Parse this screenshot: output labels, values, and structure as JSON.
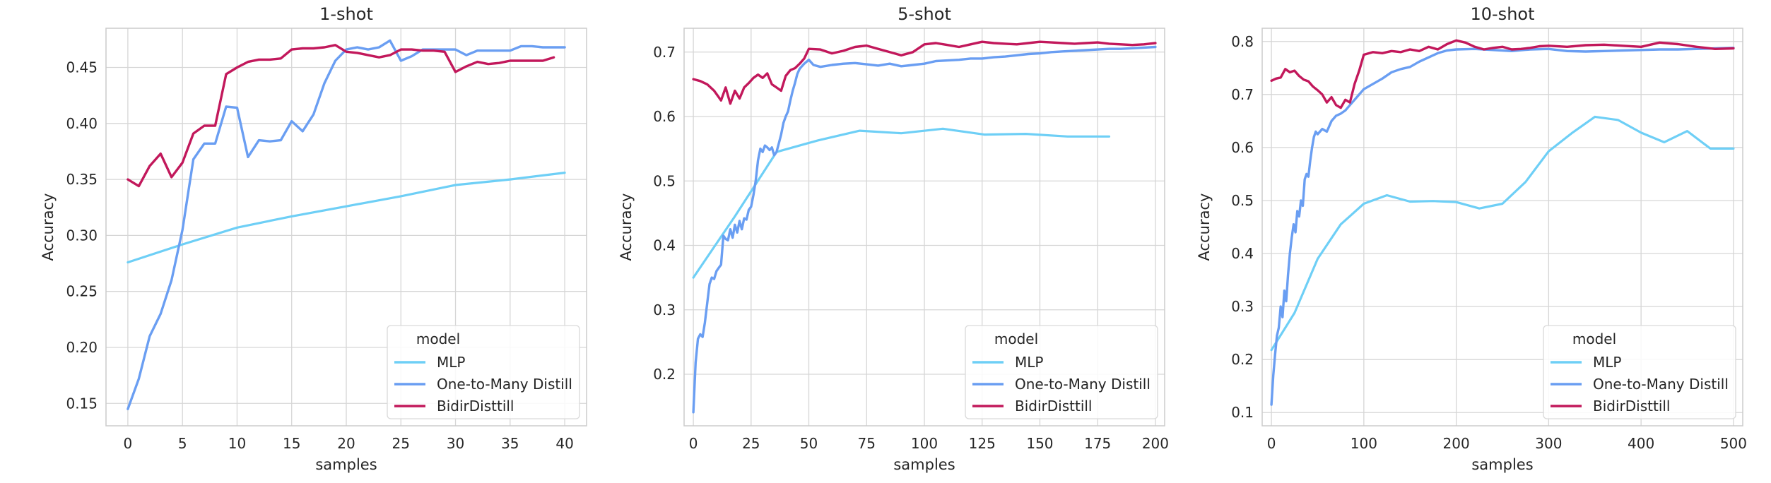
{
  "colors": {
    "MLP": "#6ecff6",
    "One-to-Many Distill": "#6a9ef2",
    "BidirDisttill": "#c2185b",
    "grid": "#d6d6d6",
    "axes_edge": "#cccccc",
    "legend_edge": "#d9d9d9"
  },
  "chart_data": [
    {
      "type": "line",
      "title": "1-shot",
      "xlabel": "samples",
      "ylabel": "Accuracy",
      "xlim": [
        -2,
        42
      ],
      "ylim": [
        0.13,
        0.485
      ],
      "xticks": [
        0,
        5,
        10,
        15,
        20,
        25,
        30,
        35,
        40
      ],
      "yticks": [
        0.15,
        0.2,
        0.25,
        0.3,
        0.35,
        0.4,
        0.45
      ],
      "ytick_labels": [
        "0.15",
        "0.20",
        "0.25",
        "0.30",
        "0.35",
        "0.40",
        "0.45"
      ],
      "grid": true,
      "legend": {
        "title": "model",
        "placement": "lower-right",
        "entries": [
          "MLP",
          "One-to-Many Distill",
          "BidirDisttill"
        ]
      },
      "series": [
        {
          "name": "MLP",
          "x": [
            0,
            5,
            10,
            15,
            20,
            25,
            30,
            35,
            40
          ],
          "y": [
            0.276,
            0.292,
            0.307,
            0.317,
            0.326,
            0.335,
            0.345,
            0.35,
            0.356
          ]
        },
        {
          "name": "One-to-Many Distill",
          "x": [
            0,
            1,
            2,
            3,
            4,
            5,
            6,
            7,
            8,
            9,
            10,
            11,
            12,
            13,
            14,
            15,
            16,
            17,
            18,
            19,
            20,
            21,
            22,
            23,
            24,
            25,
            26,
            27,
            28,
            29,
            30,
            31,
            32,
            33,
            34,
            35,
            36,
            37,
            38,
            39,
            40
          ],
          "y": [
            0.145,
            0.172,
            0.21,
            0.23,
            0.26,
            0.305,
            0.368,
            0.382,
            0.382,
            0.415,
            0.414,
            0.37,
            0.385,
            0.384,
            0.385,
            0.402,
            0.393,
            0.408,
            0.436,
            0.456,
            0.466,
            0.468,
            0.466,
            0.468,
            0.474,
            0.456,
            0.46,
            0.466,
            0.466,
            0.466,
            0.466,
            0.461,
            0.465,
            0.465,
            0.465,
            0.465,
            0.469,
            0.469,
            0.468,
            0.468,
            0.468
          ]
        },
        {
          "name": "BidirDisttill",
          "x": [
            0,
            1,
            2,
            3,
            4,
            5,
            6,
            7,
            8,
            9,
            10,
            11,
            12,
            13,
            14,
            15,
            16,
            17,
            18,
            19,
            20,
            21,
            22,
            23,
            24,
            25,
            26,
            27,
            28,
            29,
            30,
            31,
            32,
            33,
            34,
            35,
            36,
            37,
            38,
            39
          ],
          "y": [
            0.35,
            0.344,
            0.362,
            0.373,
            0.352,
            0.365,
            0.391,
            0.398,
            0.398,
            0.444,
            0.45,
            0.455,
            0.457,
            0.457,
            0.458,
            0.466,
            0.467,
            0.467,
            0.468,
            0.47,
            0.464,
            0.463,
            0.461,
            0.459,
            0.461,
            0.466,
            0.466,
            0.465,
            0.465,
            0.464,
            0.446,
            0.451,
            0.455,
            0.453,
            0.454,
            0.456,
            0.456,
            0.456,
            0.456,
            0.459
          ]
        }
      ]
    },
    {
      "type": "line",
      "title": "5-shot",
      "xlabel": "samples",
      "ylabel": "Accuracy",
      "xlim": [
        -4,
        204
      ],
      "ylim": [
        0.12,
        0.737
      ],
      "xticks": [
        0,
        25,
        50,
        75,
        100,
        125,
        150,
        175,
        200
      ],
      "yticks": [
        0.2,
        0.3,
        0.4,
        0.5,
        0.6,
        0.7
      ],
      "ytick_labels": [
        "0.2",
        "0.3",
        "0.4",
        "0.5",
        "0.6",
        "0.7"
      ],
      "grid": true,
      "legend": {
        "title": "model",
        "placement": "lower-right",
        "entries": [
          "MLP",
          "One-to-Many Distill",
          "BidirDisttill"
        ]
      },
      "series": [
        {
          "name": "MLP",
          "x": [
            0,
            18,
            36,
            54,
            72,
            90,
            108,
            126,
            144,
            162,
            180
          ],
          "y": [
            0.35,
            0.445,
            0.545,
            0.563,
            0.578,
            0.574,
            0.581,
            0.572,
            0.573,
            0.569,
            0.569
          ]
        },
        {
          "name": "One-to-Many Distill",
          "x": [
            0,
            1,
            2,
            3,
            4,
            5,
            6,
            7,
            8,
            9,
            10,
            11,
            12,
            13,
            14,
            15,
            16,
            17,
            18,
            19,
            20,
            21,
            22,
            23,
            24,
            25,
            26,
            27,
            28,
            29,
            30,
            31,
            32,
            33,
            34,
            35,
            36,
            37,
            38,
            39,
            40,
            41,
            42,
            43,
            44,
            45,
            46,
            47,
            48,
            49,
            50,
            52,
            55,
            60,
            65,
            70,
            75,
            80,
            85,
            90,
            95,
            100,
            105,
            110,
            115,
            120,
            125,
            130,
            135,
            140,
            145,
            150,
            155,
            160,
            165,
            170,
            175,
            180,
            185,
            190,
            195,
            200
          ],
          "y": [
            0.141,
            0.218,
            0.255,
            0.262,
            0.258,
            0.28,
            0.31,
            0.34,
            0.35,
            0.348,
            0.36,
            0.365,
            0.37,
            0.415,
            0.41,
            0.408,
            0.425,
            0.412,
            0.432,
            0.42,
            0.438,
            0.425,
            0.442,
            0.44,
            0.455,
            0.46,
            0.478,
            0.5,
            0.532,
            0.55,
            0.545,
            0.555,
            0.552,
            0.548,
            0.552,
            0.54,
            0.545,
            0.558,
            0.572,
            0.59,
            0.6,
            0.608,
            0.625,
            0.64,
            0.652,
            0.666,
            0.674,
            0.678,
            0.682,
            0.685,
            0.688,
            0.68,
            0.677,
            0.68,
            0.682,
            0.683,
            0.681,
            0.679,
            0.682,
            0.678,
            0.68,
            0.682,
            0.686,
            0.687,
            0.688,
            0.69,
            0.69,
            0.692,
            0.693,
            0.695,
            0.697,
            0.698,
            0.7,
            0.701,
            0.702,
            0.703,
            0.704,
            0.705,
            0.705,
            0.706,
            0.707,
            0.708
          ]
        },
        {
          "name": "BidirDisttill",
          "x": [
            0,
            3,
            6,
            9,
            12,
            14,
            16,
            18,
            20,
            22,
            24,
            26,
            28,
            30,
            32,
            34,
            36,
            38,
            40,
            42,
            44,
            46,
            48,
            50,
            55,
            60,
            65,
            70,
            75,
            80,
            85,
            90,
            95,
            100,
            105,
            110,
            115,
            120,
            125,
            130,
            135,
            140,
            145,
            150,
            155,
            160,
            165,
            170,
            175,
            180,
            185,
            190,
            195,
            200
          ],
          "y": [
            0.658,
            0.655,
            0.65,
            0.64,
            0.625,
            0.645,
            0.62,
            0.64,
            0.628,
            0.645,
            0.652,
            0.66,
            0.665,
            0.66,
            0.667,
            0.65,
            0.645,
            0.64,
            0.663,
            0.672,
            0.675,
            0.682,
            0.69,
            0.705,
            0.704,
            0.698,
            0.702,
            0.708,
            0.71,
            0.705,
            0.7,
            0.695,
            0.7,
            0.712,
            0.714,
            0.711,
            0.708,
            0.712,
            0.716,
            0.714,
            0.713,
            0.712,
            0.714,
            0.716,
            0.715,
            0.714,
            0.713,
            0.714,
            0.715,
            0.713,
            0.712,
            0.711,
            0.712,
            0.714
          ]
        }
      ]
    },
    {
      "type": "line",
      "title": "10-shot",
      "xlabel": "samples",
      "ylabel": "Accuracy",
      "xlim": [
        -10,
        510
      ],
      "ylim": [
        0.075,
        0.825
      ],
      "xticks": [
        0,
        100,
        200,
        300,
        400,
        500
      ],
      "yticks": [
        0.1,
        0.2,
        0.3,
        0.4,
        0.5,
        0.6,
        0.7,
        0.8
      ],
      "ytick_labels": [
        "0.1",
        "0.2",
        "0.3",
        "0.4",
        "0.5",
        "0.6",
        "0.7",
        "0.8"
      ],
      "grid": true,
      "legend": {
        "title": "model",
        "placement": "lower-right",
        "entries": [
          "MLP",
          "One-to-Many Distill",
          "BidirDisttill"
        ]
      },
      "series": [
        {
          "name": "MLP",
          "x": [
            0,
            25,
            50,
            75,
            100,
            125,
            150,
            175,
            200,
            225,
            250,
            275,
            300,
            325,
            350,
            375,
            400,
            425,
            450,
            475,
            500
          ],
          "y": [
            0.218,
            0.288,
            0.39,
            0.455,
            0.494,
            0.51,
            0.498,
            0.499,
            0.497,
            0.485,
            0.494,
            0.535,
            0.593,
            0.627,
            0.658,
            0.652,
            0.628,
            0.61,
            0.631,
            0.598,
            0.598
          ]
        },
        {
          "name": "One-to-Many Distill",
          "x": [
            0,
            2,
            4,
            6,
            8,
            10,
            12,
            14,
            16,
            18,
            20,
            22,
            24,
            26,
            28,
            30,
            32,
            34,
            36,
            38,
            40,
            42,
            44,
            46,
            48,
            50,
            55,
            60,
            65,
            70,
            75,
            80,
            85,
            90,
            95,
            100,
            110,
            120,
            130,
            140,
            150,
            160,
            170,
            180,
            190,
            200,
            220,
            240,
            260,
            280,
            300,
            320,
            340,
            360,
            380,
            400,
            420,
            440,
            460,
            480,
            500
          ],
          "y": [
            0.115,
            0.17,
            0.21,
            0.245,
            0.26,
            0.3,
            0.28,
            0.33,
            0.31,
            0.36,
            0.4,
            0.43,
            0.455,
            0.44,
            0.48,
            0.47,
            0.5,
            0.49,
            0.54,
            0.55,
            0.545,
            0.575,
            0.6,
            0.62,
            0.63,
            0.625,
            0.635,
            0.63,
            0.65,
            0.66,
            0.664,
            0.67,
            0.68,
            0.69,
            0.7,
            0.71,
            0.72,
            0.73,
            0.742,
            0.748,
            0.752,
            0.762,
            0.77,
            0.778,
            0.783,
            0.785,
            0.786,
            0.784,
            0.782,
            0.785,
            0.786,
            0.782,
            0.781,
            0.782,
            0.783,
            0.784,
            0.785,
            0.785,
            0.786,
            0.787,
            0.788
          ]
        },
        {
          "name": "BidirDisttill",
          "x": [
            0,
            5,
            10,
            15,
            20,
            25,
            30,
            35,
            40,
            45,
            50,
            55,
            60,
            65,
            70,
            75,
            80,
            85,
            90,
            95,
            100,
            110,
            120,
            130,
            140,
            150,
            160,
            170,
            180,
            190,
            200,
            210,
            220,
            230,
            240,
            250,
            260,
            270,
            280,
            290,
            300,
            320,
            340,
            360,
            380,
            400,
            420,
            440,
            460,
            480,
            500
          ],
          "y": [
            0.726,
            0.73,
            0.732,
            0.748,
            0.742,
            0.745,
            0.735,
            0.728,
            0.725,
            0.715,
            0.708,
            0.7,
            0.685,
            0.695,
            0.68,
            0.675,
            0.69,
            0.685,
            0.72,
            0.745,
            0.775,
            0.78,
            0.778,
            0.782,
            0.78,
            0.785,
            0.782,
            0.79,
            0.785,
            0.795,
            0.802,
            0.798,
            0.79,
            0.785,
            0.788,
            0.79,
            0.785,
            0.786,
            0.788,
            0.791,
            0.792,
            0.79,
            0.793,
            0.794,
            0.792,
            0.79,
            0.798,
            0.795,
            0.79,
            0.786,
            0.787
          ]
        }
      ]
    }
  ]
}
